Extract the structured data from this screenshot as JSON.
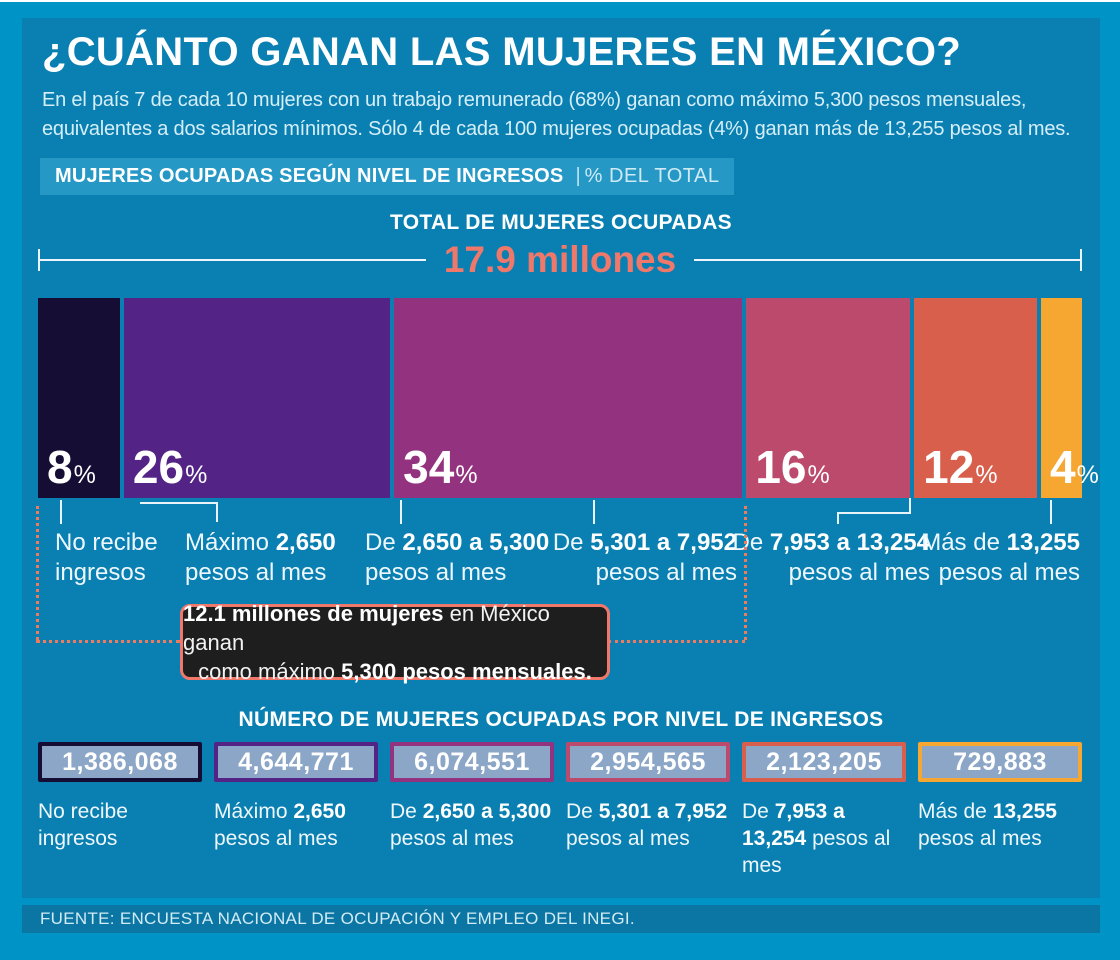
{
  "header": {
    "title": "¿CUÁNTO GANAN LAS MUJERES EN MÉXICO?",
    "intro_line1": "En el país 7 de cada 10 mujeres con un trabajo remunerado (68%) ganan como máximo 5,300 pesos mensuales,",
    "intro_line2": "equivalentes a dos salarios mínimos. Sólo 4 de cada 100 mujeres ocupadas (4%) ganan más de 13,255 pesos al mes."
  },
  "section": {
    "heading": "MUJERES OCUPADAS SEGÚN NIVEL DE INGRESOS",
    "separator": "|",
    "unit": "% DEL TOTAL"
  },
  "total": {
    "label": "TOTAL DE MUJERES OCUPADAS",
    "value": "17.9 millones"
  },
  "labels": {
    "percent_sign": "%"
  },
  "chart_data": {
    "type": "bar",
    "title": "Mujeres ocupadas según nivel de ingresos (% del total)",
    "total_women": "17.9 millones",
    "categories": [
      "No recibe ingresos",
      "Máximo 2,650 pesos al mes",
      "De 2,650 a 5,300 pesos al mes",
      "De 5,301 a 7,952 pesos al mes",
      "De 7,953 a 13,254 pesos al mes",
      "Más de 13,255 pesos al mes"
    ],
    "percent_values": [
      8,
      26,
      34,
      16,
      12,
      4
    ],
    "counts": [
      1386068,
      4644771,
      6074551,
      2954565,
      2123205,
      729883
    ],
    "counts_formatted": [
      "1,386,068",
      "4,644,771",
      "6,074,551",
      "2,954,565",
      "2,123,205",
      "729,883"
    ],
    "colors": [
      "#150d34",
      "#532385",
      "#93327e",
      "#bc4a6d",
      "#d85f4c",
      "#f6a731"
    ],
    "accent_color": "#f0786b",
    "annotation": "12.1 millones de mujeres en México ganan como máximo 5,300 pesos mensuales.",
    "grid": false,
    "legend_position": "none"
  },
  "top_labels": [
    {
      "pre": "No recibe",
      "bold": "",
      "line2": "ingresos"
    },
    {
      "pre": "Máximo ",
      "bold": "2,650",
      "line2": "pesos al mes"
    },
    {
      "pre": "De ",
      "bold": "2,650 a 5,300",
      "line2": "pesos al mes"
    },
    {
      "pre": "De ",
      "bold": "5,301 a 7,952",
      "line2": "pesos al  mes"
    },
    {
      "pre": "De ",
      "bold": "7,953 a 13,254",
      "line2": "pesos al mes"
    },
    {
      "pre": "Más de ",
      "bold": "13,255",
      "line2": "pesos al mes"
    }
  ],
  "callout": {
    "line1_bold": "12.1 millones de mujeres",
    "line1_rest": " en México ganan",
    "line2_pre": "como máximo ",
    "line2_bold": "5,300 pesos mensuales."
  },
  "counts_section": {
    "heading": "NÚMERO DE MUJERES OCUPADAS POR NIVEL DE INGRESOS"
  },
  "bottom_labels": [
    {
      "pre": "No recibe ingresos",
      "bold": "",
      "post": ""
    },
    {
      "pre": "Máximo ",
      "bold": "2,650",
      "post": " pesos al mes"
    },
    {
      "pre": "De ",
      "bold": "2,650 a 5,300",
      "post": " pesos al mes"
    },
    {
      "pre": "De ",
      "bold": "5,301 a 7,952",
      "post": " pesos al  mes"
    },
    {
      "pre": "De ",
      "bold": "7,953 a 13,254",
      "post": " pesos al mes"
    },
    {
      "pre": "Más de ",
      "bold": "13,255",
      "post": " pesos al mes"
    }
  ],
  "footer": {
    "source": "FUENTE: ENCUESTA NACIONAL DE OCUPACIÓN Y EMPLEO DEL INEGI."
  }
}
